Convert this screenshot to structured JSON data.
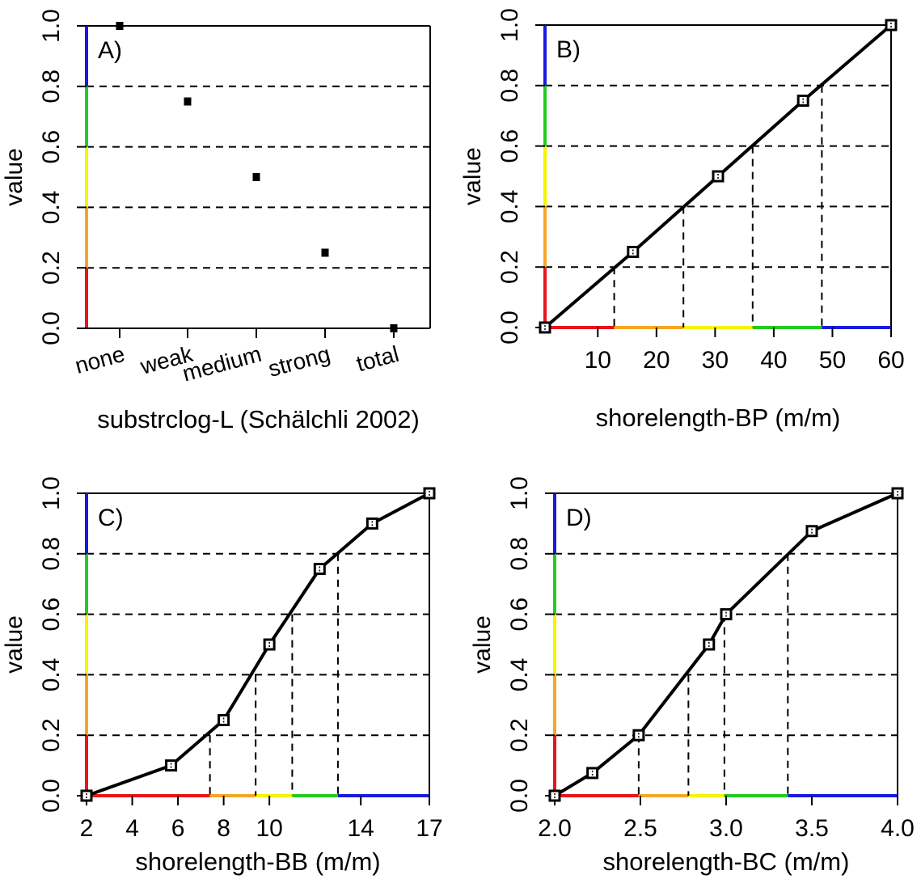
{
  "chart_data": [
    {
      "type": "scatter",
      "panel_label": "A)",
      "xlabel": "substrclog-L (Schälchli 2002)",
      "ylabel": "value",
      "categories": [
        "none",
        "weak",
        "medium",
        "strong",
        "total"
      ],
      "values": [
        1.0,
        0.75,
        0.5,
        0.25,
        0.0
      ],
      "ylim": [
        0,
        1
      ],
      "y_ticks": [
        "0.0",
        "0.2",
        "0.4",
        "0.6",
        "0.8",
        "1.0"
      ],
      "grid": "horizontal dashed at 0.2, 0.4, 0.6, 0.8",
      "class_colors": [
        "#e8141c",
        "#f5a623",
        "#f5f500",
        "#22cc22",
        "#1a1adf"
      ]
    },
    {
      "type": "line",
      "panel_label": "B)",
      "xlabel": "shorelength-BP (m/m)",
      "ylabel": "value",
      "x": [
        1,
        16,
        30.5,
        45,
        60
      ],
      "y": [
        0.0,
        0.25,
        0.5,
        0.75,
        1.0
      ],
      "xlim": [
        1,
        60
      ],
      "ylim": [
        0,
        1
      ],
      "x_ticks": [
        "10",
        "20",
        "30",
        "40",
        "50",
        "60"
      ],
      "y_ticks": [
        "0.0",
        "0.2",
        "0.4",
        "0.6",
        "0.8",
        "1.0"
      ],
      "class_thresholds_x": [
        12.8,
        24.6,
        36.4,
        48.2
      ],
      "class_colors": [
        "#e8141c",
        "#f5a623",
        "#f5f500",
        "#22cc22",
        "#1a1adf"
      ]
    },
    {
      "type": "line",
      "panel_label": "C)",
      "xlabel": "shorelength-BB (m/m)",
      "ylabel": "value",
      "x": [
        2,
        5.7,
        8,
        10,
        12.2,
        14.5,
        17
      ],
      "y": [
        0.0,
        0.1,
        0.25,
        0.5,
        0.75,
        0.9,
        1.0
      ],
      "xlim": [
        2,
        17
      ],
      "ylim": [
        0,
        1
      ],
      "x_ticks": [
        "2",
        "4",
        "6",
        "8",
        "10",
        "14",
        "17"
      ],
      "y_ticks": [
        "0.0",
        "0.2",
        "0.4",
        "0.6",
        "0.8",
        "1.0"
      ],
      "class_thresholds_x": [
        7.4,
        9.4,
        11,
        13
      ],
      "class_colors": [
        "#e8141c",
        "#f5a623",
        "#f5f500",
        "#22cc22",
        "#1a1adf"
      ]
    },
    {
      "type": "line",
      "panel_label": "D)",
      "xlabel": "shorelength-BC (m/m)",
      "ylabel": "value",
      "x": [
        2.0,
        2.22,
        2.49,
        2.9,
        3.0,
        3.5,
        4.0
      ],
      "y": [
        0.0,
        0.075,
        0.2,
        0.5,
        0.6,
        0.875,
        1.0
      ],
      "xlim": [
        2,
        4
      ],
      "ylim": [
        0,
        1
      ],
      "x_ticks": [
        "2.0",
        "2.5",
        "3.0",
        "3.5",
        "4.0"
      ],
      "y_ticks": [
        "0.0",
        "0.2",
        "0.4",
        "0.6",
        "0.8",
        "1.0"
      ],
      "class_thresholds_x": [
        2.49,
        2.78,
        2.99,
        3.36
      ],
      "class_colors": [
        "#e8141c",
        "#f5a623",
        "#f5f500",
        "#22cc22",
        "#1a1adf"
      ]
    }
  ]
}
